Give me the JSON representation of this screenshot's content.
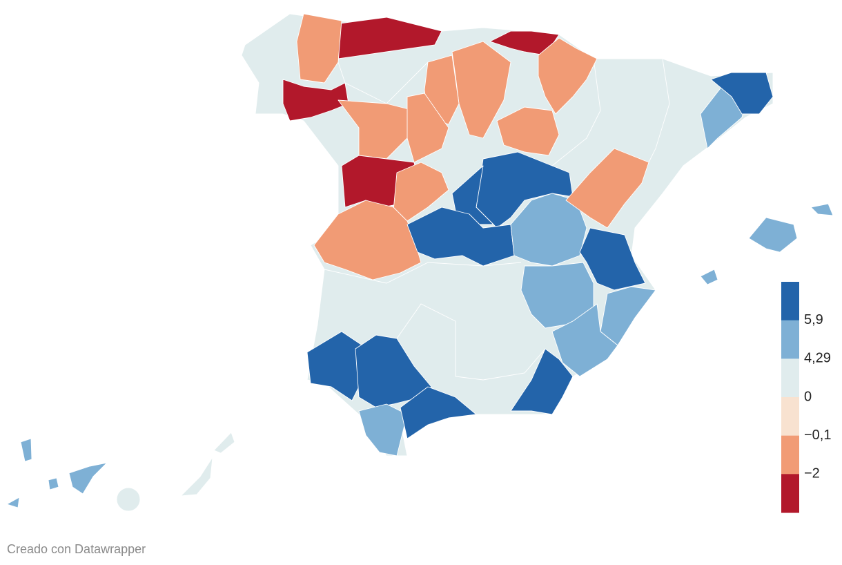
{
  "map": {
    "legend": {
      "colors": [
        "#2364aa",
        "#7eb0d5",
        "#e0eced",
        "#f8e2d0",
        "#f19b75",
        "#b2182b"
      ],
      "breaks": [
        {
          "value": 5.9,
          "label": "5,9"
        },
        {
          "value": 4.29,
          "label": "4,29"
        },
        0,
        {
          "value": -0.1,
          "label": "−0,1"
        },
        {
          "value": -2,
          "label": "−2"
        }
      ]
    }
  },
  "footer": "Creado con Datawrapper"
}
